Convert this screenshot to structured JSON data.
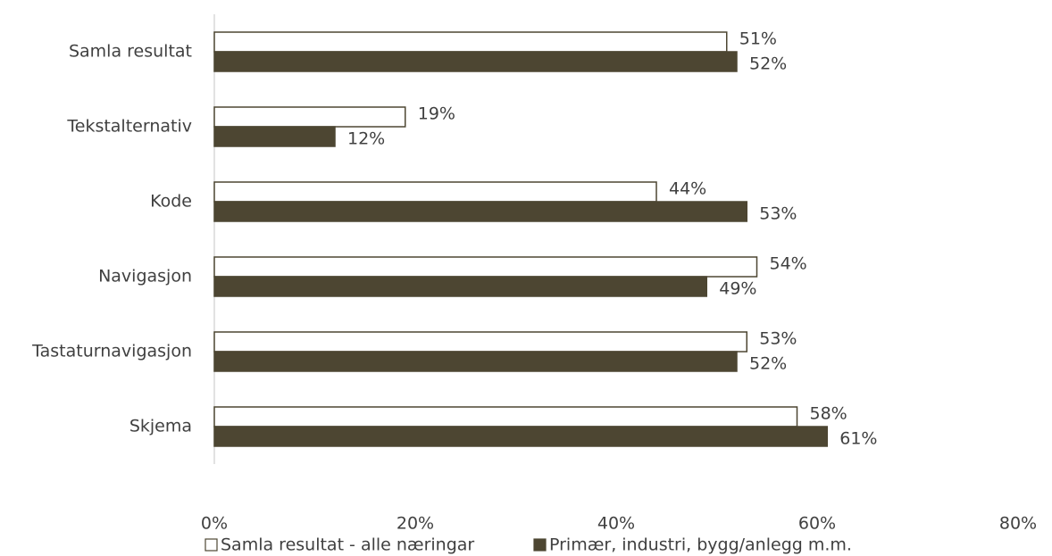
{
  "chart_data": {
    "type": "hbar",
    "categories": [
      "Samla resultat",
      "Tekstalternativ",
      "Kode",
      "Navigasjon",
      "Tastaturnavigasjon",
      "Skjema"
    ],
    "series": [
      {
        "name": "Samla resultat - alle næringar",
        "color": "#ffffff",
        "values": [
          51,
          19,
          44,
          54,
          53,
          58
        ],
        "value_labels": [
          "51%",
          "19%",
          "44%",
          "54%",
          "53%",
          "58%"
        ]
      },
      {
        "name": "Primær, industri, bygg/anlegg m.m.",
        "color": "#4d4632",
        "values": [
          52,
          12,
          53,
          49,
          52,
          61
        ],
        "value_labels": [
          "52%",
          "12%",
          "53%",
          "49%",
          "52%",
          "61%"
        ]
      }
    ],
    "xlim": [
      0,
      80
    ],
    "xticks": [
      {
        "value": 0,
        "label": "0%"
      },
      {
        "value": 20,
        "label": "20%"
      },
      {
        "value": 40,
        "label": "40%"
      },
      {
        "value": 60,
        "label": "60%"
      },
      {
        "value": 80,
        "label": "80%"
      }
    ],
    "legend": "bottom"
  }
}
